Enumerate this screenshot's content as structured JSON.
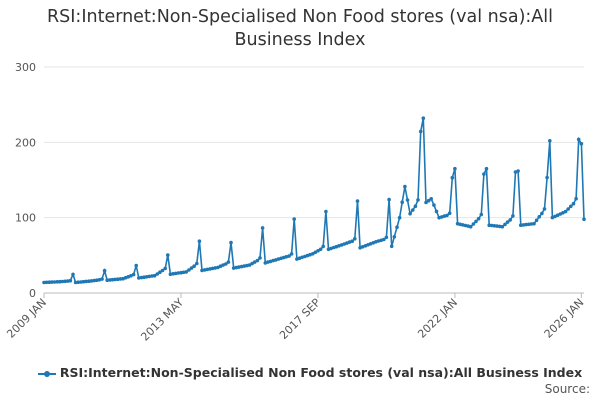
{
  "chart_data": {
    "type": "line",
    "title": "RSI:Internet:Non-Specialised Non Food stores (val nsa):All Business Index",
    "xlabel": "",
    "ylabel": "",
    "ylim": [
      0,
      300
    ],
    "yticks": [
      "0",
      "100",
      "200",
      "300"
    ],
    "xticks": [
      {
        "label": "2009 JAN",
        "t": 2009.0
      },
      {
        "label": "2013 MAY",
        "t": 2013.333
      },
      {
        "label": "2017 SEP",
        "t": 2017.667
      },
      {
        "label": "2022 JAN",
        "t": 2022.0
      },
      {
        "label": "2026 JAN",
        "t": 2026.0
      }
    ],
    "grid": "horizontal",
    "legend_position": "bottom",
    "series": [
      {
        "name": "RSI:Internet:Non-Specialised Non Food stores (val nsa):All Business Index",
        "color": "#1f78b4",
        "start": "2009 JAN",
        "frequency": "monthly",
        "keypoints": [
          [
            2009.0,
            14
          ],
          [
            2009.5,
            15
          ],
          [
            2009.83,
            16
          ],
          [
            2009.92,
            25
          ],
          [
            2010.0,
            14
          ],
          [
            2010.5,
            16
          ],
          [
            2010.83,
            18
          ],
          [
            2010.92,
            30
          ],
          [
            2011.0,
            17
          ],
          [
            2011.5,
            19
          ],
          [
            2011.83,
            24
          ],
          [
            2011.92,
            37
          ],
          [
            2012.0,
            20
          ],
          [
            2012.5,
            23
          ],
          [
            2012.83,
            32
          ],
          [
            2012.92,
            51
          ],
          [
            2013.0,
            25
          ],
          [
            2013.5,
            28
          ],
          [
            2013.83,
            38
          ],
          [
            2013.92,
            70
          ],
          [
            2014.0,
            30
          ],
          [
            2014.5,
            34
          ],
          [
            2014.83,
            40
          ],
          [
            2014.92,
            68
          ],
          [
            2015.0,
            33
          ],
          [
            2015.5,
            37
          ],
          [
            2015.83,
            45
          ],
          [
            2015.92,
            88
          ],
          [
            2016.0,
            40
          ],
          [
            2016.5,
            46
          ],
          [
            2016.83,
            50
          ],
          [
            2016.92,
            100
          ],
          [
            2017.0,
            45
          ],
          [
            2017.5,
            52
          ],
          [
            2017.83,
            60
          ],
          [
            2017.92,
            110
          ],
          [
            2018.0,
            58
          ],
          [
            2018.5,
            65
          ],
          [
            2018.83,
            70
          ],
          [
            2018.92,
            124
          ],
          [
            2019.0,
            60
          ],
          [
            2019.5,
            68
          ],
          [
            2019.83,
            72
          ],
          [
            2019.92,
            126
          ],
          [
            2020.0,
            62
          ],
          [
            2020.25,
            100
          ],
          [
            2020.42,
            142
          ],
          [
            2020.58,
            105
          ],
          [
            2020.83,
            120
          ],
          [
            2020.92,
            218
          ],
          [
            2021.0,
            232
          ],
          [
            2021.08,
            120
          ],
          [
            2021.25,
            125
          ],
          [
            2021.5,
            100
          ],
          [
            2021.83,
            104
          ],
          [
            2021.92,
            155
          ],
          [
            2022.0,
            165
          ],
          [
            2022.08,
            92
          ],
          [
            2022.5,
            88
          ],
          [
            2022.83,
            102
          ],
          [
            2022.92,
            160
          ],
          [
            2023.0,
            165
          ],
          [
            2023.08,
            90
          ],
          [
            2023.5,
            88
          ],
          [
            2023.83,
            100
          ],
          [
            2023.92,
            163
          ],
          [
            2024.0,
            162
          ],
          [
            2024.08,
            90
          ],
          [
            2024.5,
            92
          ],
          [
            2024.83,
            110
          ],
          [
            2024.92,
            155
          ],
          [
            2025.0,
            202
          ],
          [
            2025.08,
            100
          ],
          [
            2025.5,
            108
          ],
          [
            2025.83,
            122
          ],
          [
            2025.92,
            207
          ],
          [
            2026.0,
            198
          ],
          [
            2026.08,
            98
          ]
        ]
      }
    ]
  },
  "legend": {
    "label": "RSI:Internet:Non-Specialised Non Food stores (val nsa):All Business Index"
  },
  "source": {
    "label": "Source:"
  }
}
